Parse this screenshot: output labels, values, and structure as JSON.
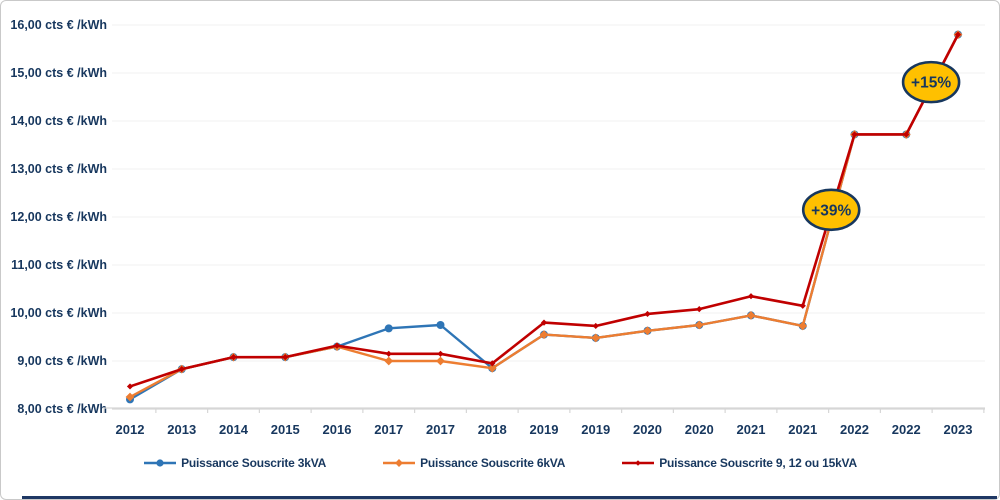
{
  "chart_data": {
    "type": "line",
    "title": "",
    "categories": [
      "2012",
      "2013",
      "2014",
      "2015",
      "2016",
      "2017",
      "2017",
      "2018",
      "2019",
      "2019",
      "2020",
      "2020",
      "2021",
      "2021",
      "2022",
      "2022",
      "2023"
    ],
    "y_axis": {
      "min": 8,
      "max": 16,
      "step": 1,
      "ticks": [
        {
          "value": 8,
          "label": "8,00 cts € /kWh"
        },
        {
          "value": 9,
          "label": "9,00 cts € /kWh"
        },
        {
          "value": 10,
          "label": "10,00 cts € /kWh"
        },
        {
          "value": 11,
          "label": "11,00 cts € /kWh"
        },
        {
          "value": 12,
          "label": "12,00 cts € /kWh"
        },
        {
          "value": 13,
          "label": "13,00 cts € /kWh"
        },
        {
          "value": 14,
          "label": "14,00 cts € /kWh"
        },
        {
          "value": 15,
          "label": "15,00 cts € /kWh"
        },
        {
          "value": 16,
          "label": "16,00 cts € /kWh"
        }
      ]
    },
    "grid": "horizontal",
    "legend_position": "bottom",
    "series": [
      {
        "name": "Puissance Souscrite 3kVA",
        "color": "#2e75b6",
        "marker": "circle",
        "values": [
          8.2,
          8.83,
          9.08,
          9.08,
          9.3,
          9.68,
          9.75,
          8.85,
          9.55,
          9.48,
          9.63,
          9.75,
          9.95,
          9.73,
          13.72,
          13.72,
          15.8
        ]
      },
      {
        "name": "Puissance Souscrite 6kVA",
        "color": "#ed7d31",
        "marker": "diamond",
        "values": [
          8.25,
          8.83,
          9.08,
          9.08,
          9.3,
          9.0,
          9.0,
          8.85,
          9.55,
          9.48,
          9.63,
          9.75,
          9.95,
          9.73,
          13.72,
          13.72,
          15.8
        ]
      },
      {
        "name": "Puissance Souscrite 9, 12 ou 15kVA",
        "color": "#c00000",
        "marker": "diamond-small",
        "values": [
          8.47,
          8.83,
          9.08,
          9.08,
          9.32,
          9.15,
          9.15,
          8.95,
          9.8,
          9.73,
          9.98,
          10.08,
          10.35,
          10.15,
          13.72,
          13.72,
          15.8
        ]
      }
    ],
    "annotations": [
      {
        "text": "+39%",
        "x_index": 13.55,
        "value": 12.15,
        "fill": "#ffc000",
        "border": "#17375e"
      },
      {
        "text": "+15%",
        "x_index": 15.48,
        "value": 14.81,
        "fill": "#ffc000",
        "border": "#17375e"
      }
    ],
    "axis_color": "#d6d6d6",
    "grid_color": "#f1f1f1",
    "label_color": "#17375e"
  }
}
